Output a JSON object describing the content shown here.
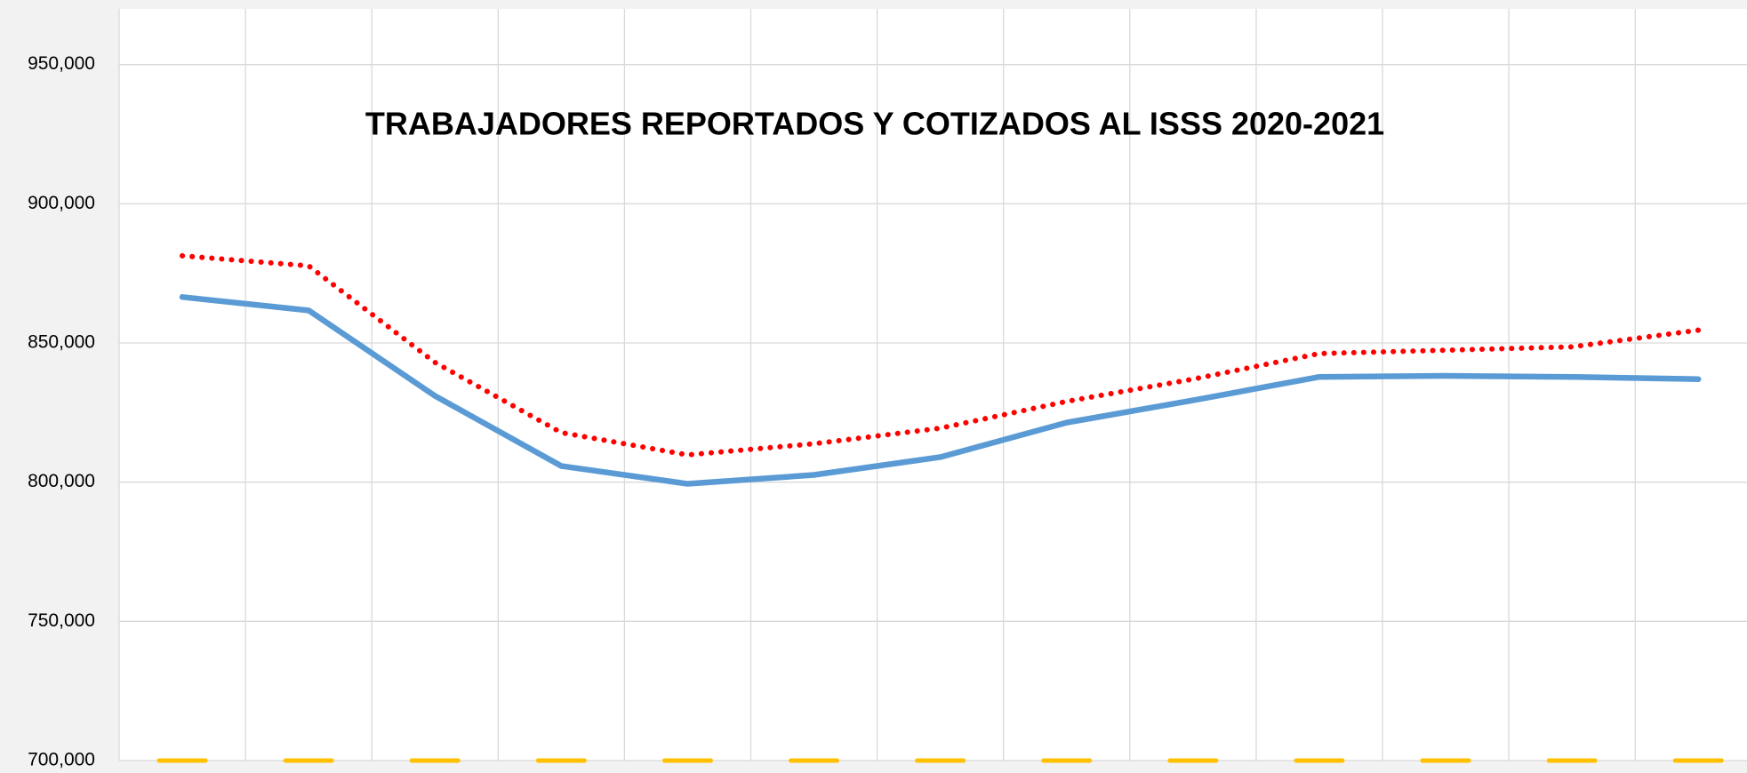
{
  "chart_data": {
    "type": "line",
    "title": "TRABAJADORES REPORTADOS Y COTIZADOS AL ISSS 2020-2021",
    "categories": [
      null,
      null,
      null,
      null,
      null,
      null,
      null,
      null,
      null,
      null,
      null,
      null,
      null
    ],
    "series": [
      {
        "color": "#ff0000",
        "style": "dotted",
        "values": [
          881300,
          877700,
          843000,
          817800,
          809800,
          813800,
          819400,
          829000,
          837000,
          846200,
          847400,
          848600,
          854600
        ]
      },
      {
        "color": "#5b9bd5",
        "style": "solid",
        "values": [
          866500,
          861700,
          831000,
          805800,
          799400,
          802600,
          809000,
          821400,
          829400,
          837800,
          838200,
          837800,
          837000
        ]
      },
      {
        "color": "#ffc000",
        "style": "dash-marker",
        "values": [
          700000,
          700000,
          700000,
          700000,
          700000,
          700000,
          700000,
          700000,
          700000,
          700000,
          700000,
          700000,
          700000
        ]
      }
    ],
    "ylim": [
      700000,
      970000
    ],
    "yticks": [
      {
        "value": 700000,
        "label": "700,000"
      },
      {
        "value": 750000,
        "label": "750,000"
      },
      {
        "value": 800000,
        "label": "800,000"
      },
      {
        "value": 850000,
        "label": "850,000"
      },
      {
        "value": 900000,
        "label": "900,000"
      },
      {
        "value": 950000,
        "label": "950,000"
      }
    ],
    "grid": true
  }
}
